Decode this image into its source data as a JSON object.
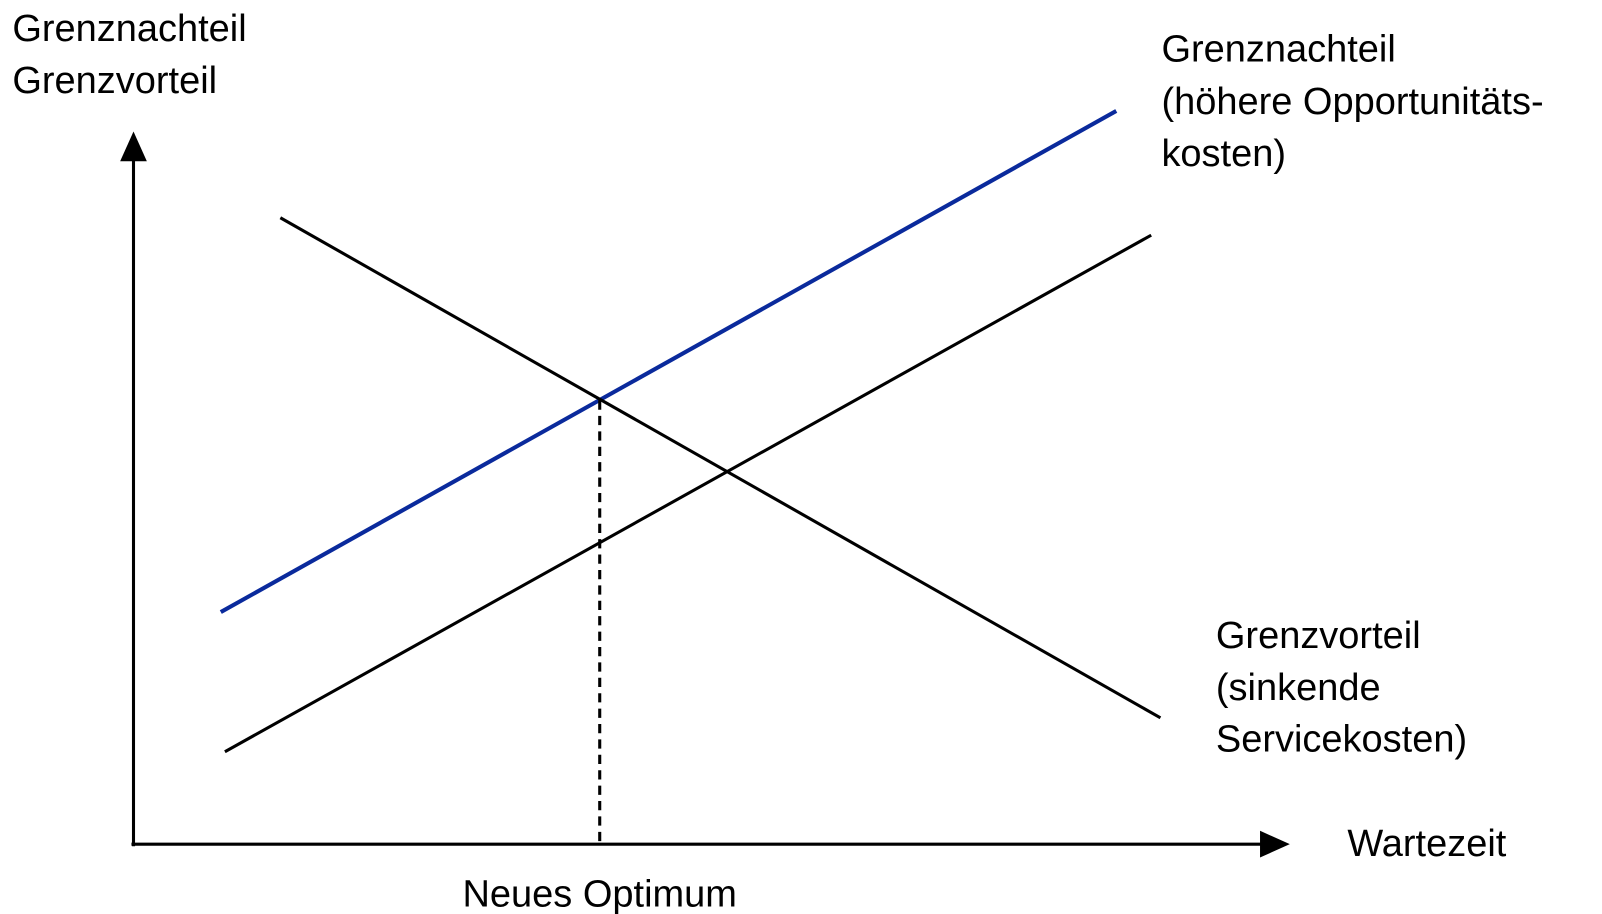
{
  "axes": {
    "y_label": [
      "Grenznachteil",
      "Grenzvorteil"
    ],
    "x_label": "Wartezeit"
  },
  "curves": [
    {
      "label": [
        "Grenznachteil",
        "(höhere Opportunitäts-",
        "kosten)"
      ]
    },
    {
      "label": [
        "Grenzvorteil",
        "(sinkende",
        "Servicekosten)"
      ]
    }
  ],
  "optimum_label": "Neues Optimum"
}
